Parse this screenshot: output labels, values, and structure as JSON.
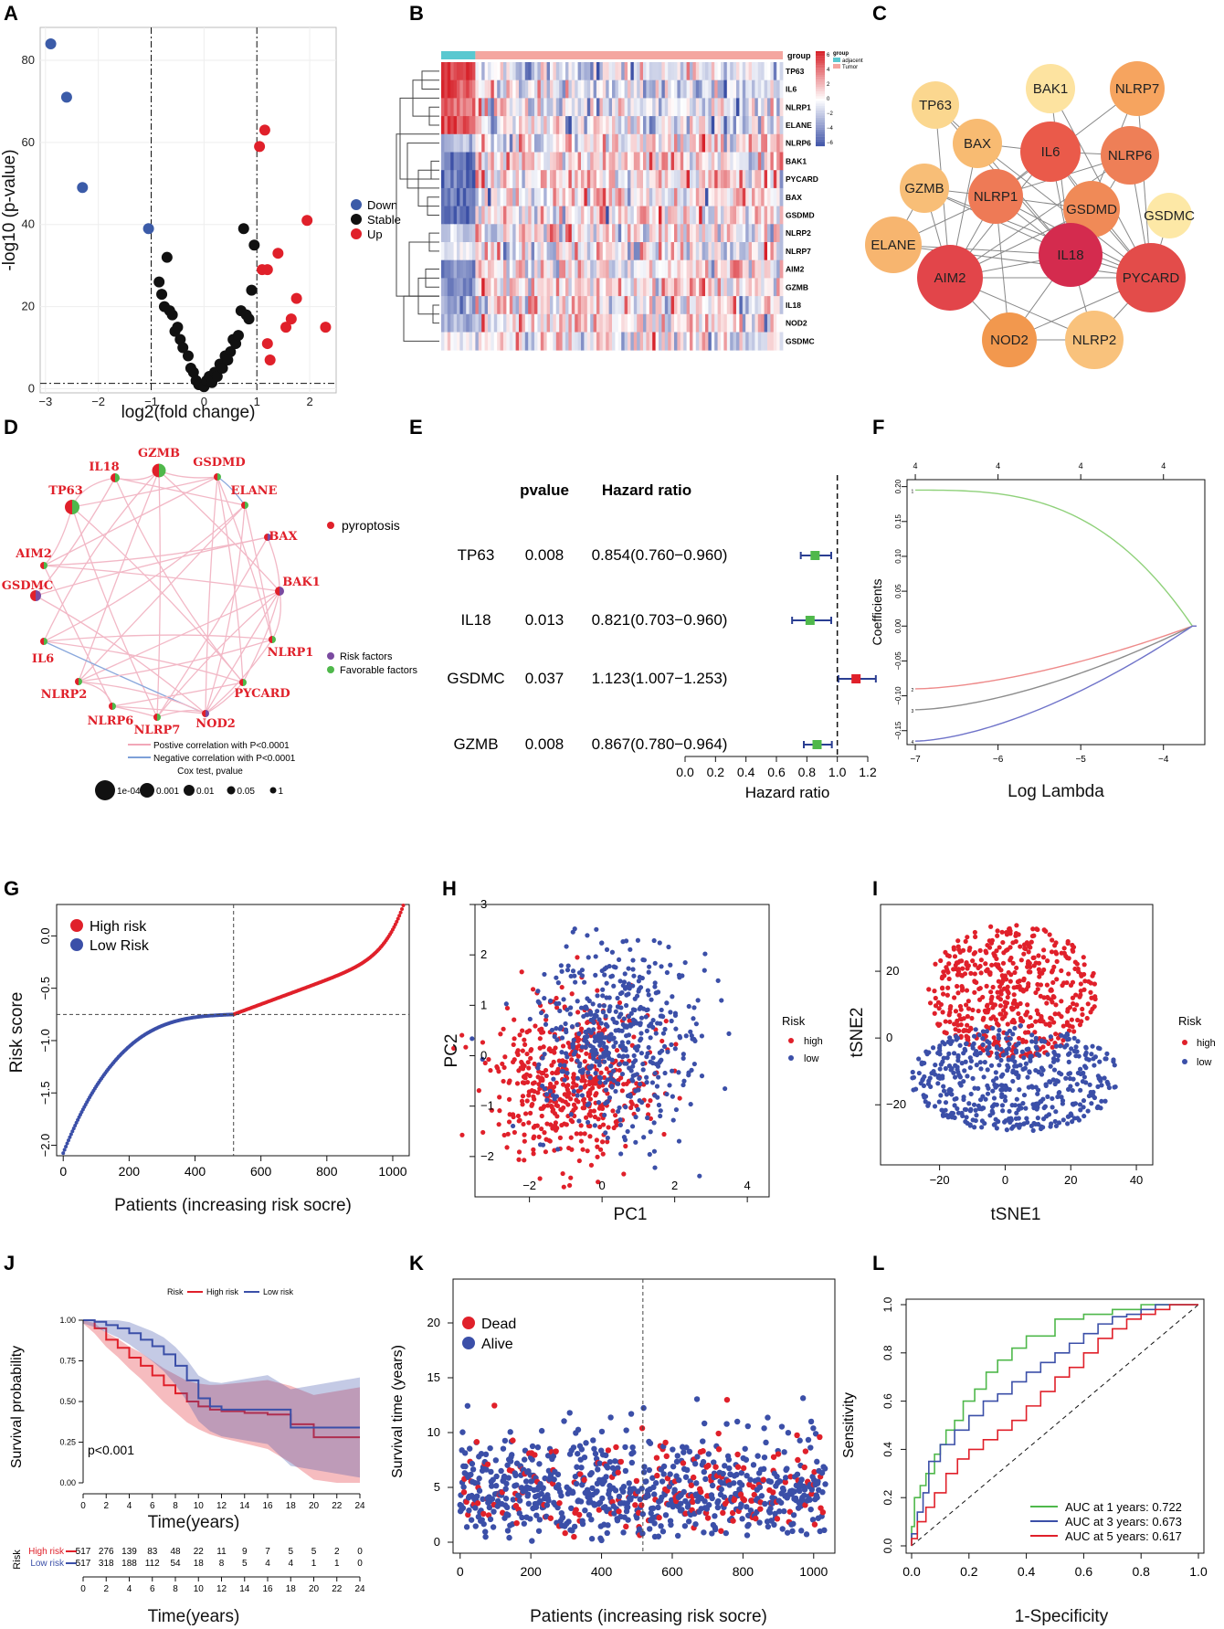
{
  "figure": {
    "panel_letters": [
      "A",
      "B",
      "C",
      "D",
      "E",
      "F",
      "G",
      "H",
      "I",
      "J",
      "K",
      "L"
    ]
  },
  "chart_data": [
    {
      "panel": "A",
      "type": "scatter",
      "title": "",
      "xlabel": "log2(fold change)",
      "ylabel": "-log10 (p-value)",
      "xlim": [
        -3.1,
        2.5
      ],
      "ylim": [
        -1,
        88
      ],
      "xticks": [
        -3,
        -2,
        -1,
        0,
        1,
        2
      ],
      "yticks": [
        0,
        20,
        40,
        60,
        80
      ],
      "vlines": [
        -1,
        1
      ],
      "hline": 1.3,
      "legend": {
        "position": "right",
        "entries": [
          "Down",
          "Stable",
          "Up"
        ],
        "colors": [
          "#3b5ba8",
          "#111111",
          "#e0202a"
        ]
      },
      "series": [
        {
          "name": "Down",
          "x": [
            -2.9,
            -2.6,
            -2.3,
            -1.05
          ],
          "y": [
            84,
            71,
            49,
            39
          ]
        },
        {
          "name": "Stable",
          "x": [
            -0.85,
            -0.8,
            -0.7,
            -0.75,
            -0.6,
            -0.55,
            -0.5,
            -0.45,
            -0.4,
            -0.3,
            -0.25,
            -0.2,
            -0.15,
            -0.1,
            -0.05,
            0.0,
            0.05,
            0.1,
            0.15,
            0.2,
            0.25,
            0.3,
            0.35,
            0.4,
            0.5,
            0.55,
            0.6,
            0.65,
            0.7,
            0.8,
            0.85,
            0.9,
            0.95,
            0.75,
            -0.65,
            0.45
          ],
          "y": [
            26,
            23,
            32,
            20,
            18,
            14,
            15,
            12,
            10,
            8,
            5,
            4,
            2,
            1,
            1,
            0.5,
            2,
            3,
            1.5,
            4,
            3,
            6,
            5,
            8,
            9,
            12,
            11,
            13,
            19,
            18,
            17,
            24,
            35,
            39,
            19,
            7
          ]
        },
        {
          "name": "Up",
          "x": [
            1.05,
            1.15,
            1.1,
            1.2,
            1.2,
            1.25,
            1.4,
            1.55,
            1.65,
            1.75,
            1.95,
            2.3
          ],
          "y": [
            59,
            63,
            29,
            29,
            11,
            7,
            33,
            15,
            17,
            22,
            41,
            15
          ]
        }
      ]
    },
    {
      "panel": "B",
      "type": "heatmap",
      "rows": [
        "TP63",
        "IL6",
        "NLRP1",
        "ELANE",
        "NLRP6",
        "BAK1",
        "PYCARD",
        "BAX",
        "GSDMD",
        "NLRP2",
        "NLRP7",
        "AIM2",
        "GZMB",
        "IL18",
        "NOD2",
        "GSDMC"
      ],
      "annotation": {
        "label": "group",
        "groups": [
          "adjacent",
          "Tumor"
        ],
        "colors": [
          "#5ac8d0",
          "#f4a6a0"
        ]
      },
      "colorbar": {
        "ticks": [
          6,
          4,
          2,
          0,
          -2,
          -4,
          -6
        ],
        "colors": [
          "#d7232b",
          "#ffffff",
          "#3a4fa5"
        ]
      },
      "columns": {
        "adjacent": 30,
        "tumor": 300
      }
    },
    {
      "panel": "C",
      "type": "network",
      "nodes": [
        {
          "id": "TP63",
          "color": "#fbd78f"
        },
        {
          "id": "BAK1",
          "color": "#fde3a0"
        },
        {
          "id": "NLRP7",
          "color": "#f6a45f"
        },
        {
          "id": "BAX",
          "color": "#f8bb72"
        },
        {
          "id": "IL6",
          "color": "#ea5a4a"
        },
        {
          "id": "NLRP6",
          "color": "#ee7f57"
        },
        {
          "id": "GZMB",
          "color": "#f8be77"
        },
        {
          "id": "NLRP1",
          "color": "#ee7a56"
        },
        {
          "id": "GSDMD",
          "color": "#f08a57"
        },
        {
          "id": "GSDMC",
          "color": "#fde8a6"
        },
        {
          "id": "ELANE",
          "color": "#f7b56f"
        },
        {
          "id": "IL18",
          "color": "#d42b4e"
        },
        {
          "id": "AIM2",
          "color": "#e2454a"
        },
        {
          "id": "PYCARD",
          "color": "#e34c4a"
        },
        {
          "id": "NOD2",
          "color": "#f2984e"
        },
        {
          "id": "NLRP2",
          "color": "#f9c27c"
        }
      ]
    },
    {
      "panel": "D",
      "type": "network",
      "nodes": [
        "IL18",
        "GZMB",
        "GSDMD",
        "TP63",
        "ELANE",
        "AIM2",
        "BAX",
        "GSDMC",
        "BAK1",
        "IL6",
        "NLRP1",
        "NLRP2",
        "PYCARD",
        "NLRP6",
        "NLRP7",
        "NOD2"
      ],
      "legend_group": "pyroptosis",
      "legend_factors": [
        "Risk factors",
        "Favorable factors"
      ],
      "legend_lines": [
        "Postive correlation with P<0.0001",
        "Negative correlation with P<0.0001"
      ],
      "legend_size_title": "Cox test, pvalue",
      "legend_sizes": [
        "1e-04",
        "0.001",
        "0.01",
        "0.05",
        "1"
      ]
    },
    {
      "panel": "E",
      "type": "table",
      "headers": [
        "pvalue",
        "Hazard ratio"
      ],
      "rows": [
        {
          "gene": "TP63",
          "pvalue": "0.008",
          "hr_text": "0.854(0.760−0.960)",
          "hr": 0.854,
          "lo": 0.76,
          "hi": 0.96,
          "color": "#4fb84b"
        },
        {
          "gene": "IL18",
          "pvalue": "0.013",
          "hr_text": "0.821(0.703−0.960)",
          "hr": 0.821,
          "lo": 0.703,
          "hi": 0.96,
          "color": "#4fb84b"
        },
        {
          "gene": "GSDMC",
          "pvalue": "0.037",
          "hr_text": "1.123(1.007−1.253)",
          "hr": 1.123,
          "lo": 1.007,
          "hi": 1.253,
          "color": "#e0202a"
        },
        {
          "gene": "GZMB",
          "pvalue": "0.008",
          "hr_text": "0.867(0.780−0.964)",
          "hr": 0.867,
          "lo": 0.78,
          "hi": 0.964,
          "color": "#4fb84b"
        }
      ],
      "xlabel": "Hazard ratio",
      "xticks": [
        "0.0",
        "0.2",
        "0.4",
        "0.6",
        "0.8",
        "1.0",
        "1.2"
      ],
      "ref": 1.0
    },
    {
      "panel": "F",
      "type": "line",
      "xlabel": "Log Lambda",
      "ylabel": "Coefficients",
      "xlim": [
        -7.1,
        -3.5
      ],
      "ylim": [
        -0.17,
        0.21
      ],
      "xticks": [
        -7,
        -6,
        -5,
        -4
      ],
      "yticks": [
        -0.15,
        -0.1,
        -0.05,
        0.0,
        0.05,
        0.1,
        0.15,
        0.2
      ],
      "top_ticks": [
        "4",
        "4",
        "4",
        "4"
      ],
      "series": [
        {
          "name": "1",
          "color": "#8fd17a",
          "start": 0.195,
          "end": 0.0
        },
        {
          "name": "2",
          "color": "#ee8a8a",
          "start": -0.09,
          "end": 0.0
        },
        {
          "name": "3",
          "color": "#8c8c8c",
          "start": -0.12,
          "end": 0.0
        },
        {
          "name": "4",
          "color": "#6f73c9",
          "start": -0.165,
          "end": 0.0
        }
      ]
    },
    {
      "panel": "G",
      "type": "scatter",
      "xlabel": "Patients (increasing risk socre)",
      "ylabel": "Risk score",
      "xlim": [
        -20,
        1050
      ],
      "ylim": [
        -2.1,
        0.3
      ],
      "xticks": [
        0,
        200,
        400,
        600,
        800,
        1000
      ],
      "yticks": [
        "-2.0",
        "-1.5",
        "-1.0",
        "-0.5",
        "0.0"
      ],
      "cutoff_x": 517,
      "cutoff_y": -0.75,
      "legend": [
        "High risk",
        "Low Risk"
      ],
      "colors": [
        "#e0202a",
        "#3b4fa8"
      ]
    },
    {
      "panel": "H",
      "type": "scatter",
      "xlabel": "PC1",
      "ylabel": "PC2",
      "xlim": [
        -3.5,
        4.6
      ],
      "ylim": [
        -2.8,
        3.0
      ],
      "xticks": [
        -2,
        0,
        2,
        4
      ],
      "yticks": [
        -2,
        -1,
        0,
        1,
        2,
        3
      ],
      "legend_title": "Risk",
      "legend": [
        "high",
        "low"
      ],
      "colors": [
        "#e0202a",
        "#3b4fa8"
      ]
    },
    {
      "panel": "I",
      "type": "scatter",
      "xlabel": "tSNE1",
      "ylabel": "tSNE2",
      "xlim": [
        -38,
        45
      ],
      "ylim": [
        -38,
        40
      ],
      "xticks": [
        -20,
        0,
        20,
        40
      ],
      "yticks": [
        -20,
        0,
        20
      ],
      "legend_title": "Risk",
      "legend": [
        "high",
        "low"
      ],
      "colors": [
        "#e0202a",
        "#3b4fa8"
      ]
    },
    {
      "panel": "J",
      "type": "line",
      "xlabel": "Time(years)",
      "ylabel": "Survival probability",
      "xlim": [
        -1,
        25
      ],
      "ylim": [
        0,
        1.0
      ],
      "xticks": [
        0,
        2,
        4,
        6,
        8,
        10,
        12,
        14,
        16,
        18,
        20,
        22,
        24
      ],
      "yticks": [
        "0.00",
        "0.25",
        "0.50",
        "0.75",
        "1.00"
      ],
      "legend_title": "Risk",
      "legend": [
        "High risk",
        "Low risk"
      ],
      "pvalue": "p<0.001",
      "series": [
        {
          "name": "High risk",
          "color": "#e0202a",
          "t": [
            0,
            1,
            2,
            3,
            4,
            5,
            6,
            7,
            8,
            9,
            10,
            11,
            12,
            14,
            16,
            18,
            20,
            22,
            24
          ],
          "s": [
            1.0,
            0.95,
            0.88,
            0.83,
            0.77,
            0.72,
            0.66,
            0.6,
            0.55,
            0.5,
            0.47,
            0.45,
            0.44,
            0.43,
            0.42,
            0.36,
            0.28,
            0.28,
            0.28
          ]
        },
        {
          "name": "Low risk",
          "color": "#3b4fa8",
          "t": [
            0,
            1,
            2,
            3,
            4,
            5,
            6,
            7,
            8,
            9,
            10,
            11,
            12,
            14,
            16,
            18,
            20,
            22,
            24
          ],
          "s": [
            1.0,
            0.99,
            0.97,
            0.95,
            0.92,
            0.88,
            0.84,
            0.79,
            0.72,
            0.63,
            0.52,
            0.47,
            0.45,
            0.45,
            0.45,
            0.34,
            0.34,
            0.34,
            0.34
          ]
        }
      ],
      "risk_table": {
        "title": "Risk",
        "times": [
          "0",
          "2",
          "4",
          "6",
          "8",
          "10",
          "12",
          "14",
          "16",
          "18",
          "20",
          "22",
          "24"
        ],
        "rows": [
          {
            "name": "High risk",
            "counts": [
              "517",
              "276",
              "139",
              "83",
              "48",
              "22",
              "11",
              "9",
              "7",
              "5",
              "5",
              "2",
              "0"
            ]
          },
          {
            "name": "Low risk",
            "counts": [
              "517",
              "318",
              "188",
              "112",
              "54",
              "18",
              "8",
              "5",
              "4",
              "4",
              "1",
              "1",
              "0"
            ]
          }
        ]
      }
    },
    {
      "panel": "K",
      "type": "scatter",
      "xlabel": "Patients (increasing risk socre)",
      "ylabel": "Survival time (years)",
      "xlim": [
        -20,
        1060
      ],
      "ylim": [
        -1,
        24
      ],
      "xticks": [
        0,
        200,
        400,
        600,
        800,
        1000
      ],
      "yticks": [
        0,
        5,
        10,
        15,
        20
      ],
      "cutoff_x": 517,
      "legend": [
        "Dead",
        "Alive"
      ],
      "colors": [
        "#e0202a",
        "#3b4fa8"
      ]
    },
    {
      "panel": "L",
      "type": "line",
      "xlabel": "1-Specificity",
      "ylabel": "Sensitivity",
      "xlim": [
        -0.02,
        1.02
      ],
      "ylim": [
        -0.02,
        1.02
      ],
      "xticks": [
        "0.0",
        "0.2",
        "0.4",
        "0.6",
        "0.8",
        "1.0"
      ],
      "yticks": [
        "0.0",
        "0.2",
        "0.4",
        "0.6",
        "0.8",
        "1.0"
      ],
      "series": [
        {
          "name": "AUC at 1 years: 0.722",
          "color": "#4fb84b",
          "x": [
            0,
            0.01,
            0.03,
            0.05,
            0.08,
            0.1,
            0.12,
            0.15,
            0.18,
            0.22,
            0.26,
            0.3,
            0.35,
            0.4,
            0.45,
            0.5,
            0.55,
            0.6,
            0.7,
            0.8,
            0.9,
            1.0
          ],
          "y": [
            0,
            0.08,
            0.2,
            0.25,
            0.3,
            0.38,
            0.42,
            0.48,
            0.52,
            0.6,
            0.65,
            0.72,
            0.77,
            0.82,
            0.87,
            0.87,
            0.94,
            0.94,
            0.96,
            0.98,
            1.0,
            1.0
          ]
        },
        {
          "name": "AUC at 3 years: 0.673",
          "color": "#3b4fa8",
          "x": [
            0,
            0.02,
            0.04,
            0.06,
            0.1,
            0.15,
            0.2,
            0.25,
            0.3,
            0.35,
            0.4,
            0.45,
            0.5,
            0.55,
            0.6,
            0.65,
            0.7,
            0.75,
            0.8,
            0.85,
            0.9,
            1.0
          ],
          "y": [
            0,
            0.05,
            0.14,
            0.22,
            0.35,
            0.42,
            0.48,
            0.54,
            0.6,
            0.63,
            0.68,
            0.72,
            0.76,
            0.8,
            0.84,
            0.88,
            0.92,
            0.95,
            0.96,
            0.98,
            1.0,
            1.0
          ]
        },
        {
          "name": "AUC at 5 years: 0.617",
          "color": "#e0202a",
          "x": [
            0,
            0.02,
            0.05,
            0.08,
            0.12,
            0.16,
            0.2,
            0.25,
            0.3,
            0.35,
            0.4,
            0.45,
            0.5,
            0.55,
            0.6,
            0.65,
            0.7,
            0.75,
            0.8,
            0.85,
            0.9,
            1.0
          ],
          "y": [
            0,
            0.03,
            0.1,
            0.16,
            0.22,
            0.3,
            0.36,
            0.4,
            0.44,
            0.48,
            0.52,
            0.58,
            0.64,
            0.7,
            0.74,
            0.8,
            0.86,
            0.9,
            0.94,
            0.96,
            0.98,
            1.0
          ]
        }
      ]
    }
  ]
}
